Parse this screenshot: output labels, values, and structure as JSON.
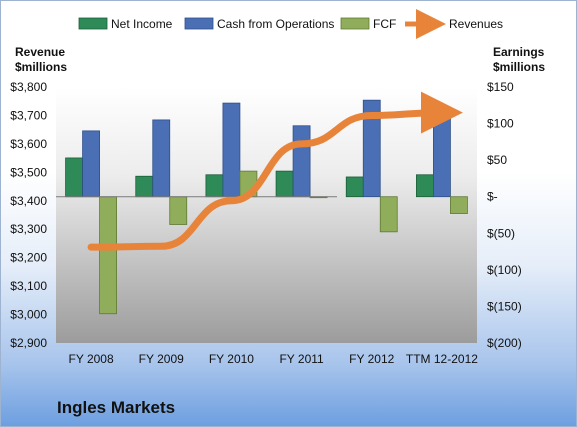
{
  "company_name": "Ingles Markets",
  "colors": {
    "net_income": "#2e8b57",
    "cash_from_operations": "#4a6fb5",
    "fcf": "#8fad5a",
    "revenues": "#e8843a"
  },
  "chart_data": {
    "type": "bar",
    "categories": [
      "FY 2008",
      "FY 2009",
      "FY 2010",
      "FY 2011",
      "FY 2012",
      "TTM 12-2012"
    ],
    "series": [
      {
        "name": "Net Income",
        "axis": "right",
        "type": "bar",
        "values": [
          53,
          28,
          30,
          35,
          27,
          30
        ]
      },
      {
        "name": "Cash from Operations",
        "axis": "right",
        "type": "bar",
        "values": [
          90,
          105,
          128,
          97,
          132,
          122
        ]
      },
      {
        "name": "FCF",
        "axis": "right",
        "type": "bar",
        "values": [
          -160,
          -38,
          35,
          0,
          -48,
          -23
        ]
      },
      {
        "name": "Revenues",
        "axis": "left",
        "type": "line",
        "values": [
          3237,
          3240,
          3400,
          3600,
          3700,
          3710
        ]
      }
    ],
    "left_axis": {
      "title_line1": "Revenue",
      "title_line2": "$millions",
      "min": 2900,
      "max": 3800,
      "ticks": [
        "$2,900",
        "$3,000",
        "$3,100",
        "$3,200",
        "$3,300",
        "$3,400",
        "$3,500",
        "$3,600",
        "$3,700",
        "$3,800"
      ]
    },
    "right_axis": {
      "title_line1": "Earnings",
      "title_line2": "$millions",
      "min": -200,
      "max": 150,
      "ticks": [
        "$(200)",
        "$(150)",
        "$(100)",
        "$(50)",
        "$-",
        "$50",
        "$100",
        "$150"
      ]
    },
    "legend": [
      "Net Income",
      "Cash from Operations",
      "FCF",
      "Revenues"
    ],
    "legend_position": "top",
    "grid": false
  }
}
